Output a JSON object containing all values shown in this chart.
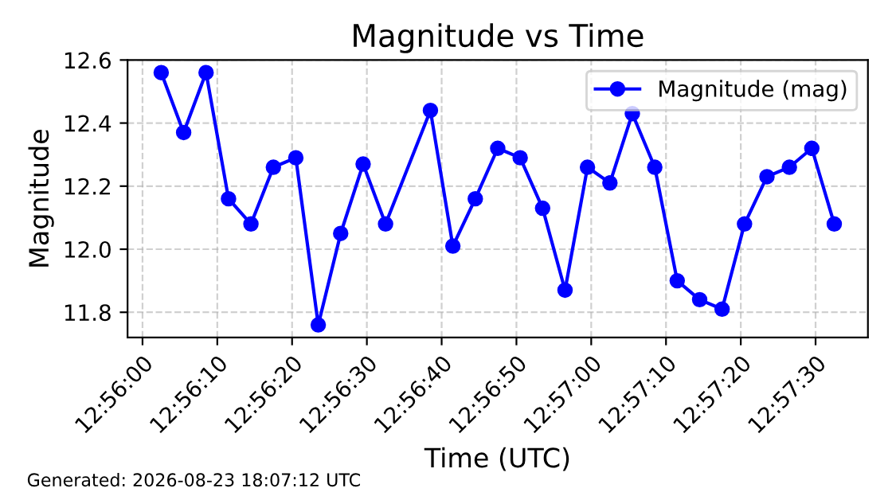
{
  "chart_data": {
    "type": "line",
    "title": "Magnitude vs Time",
    "xlabel": "Time (UTC)",
    "ylabel": "Magnitude",
    "annotations": [
      "Generated: 2026-08-23 18:07:12 UTC"
    ],
    "x": [
      "2026-08-23T12:56:02.5",
      "2026-08-23T12:56:05.5",
      "2026-08-23T12:56:08.5",
      "2026-08-23T12:56:11.5",
      "2026-08-23T12:56:14.5",
      "2026-08-23T12:56:17.5",
      "2026-08-23T12:56:20.5",
      "2026-08-23T12:56:23.5",
      "2026-08-23T12:56:26.5",
      "2026-08-23T12:56:29.5",
      "2026-08-23T12:56:32.5",
      "2026-08-23T12:56:38.5",
      "2026-08-23T12:56:41.5",
      "2026-08-23T12:56:44.5",
      "2026-08-23T12:56:47.5",
      "2026-08-23T12:56:50.5",
      "2026-08-23T12:56:53.5",
      "2026-08-23T12:56:56.5",
      "2026-08-23T12:56:59.5",
      "2026-08-23T12:57:02.5",
      "2026-08-23T12:57:05.5",
      "2026-08-23T12:57:08.5",
      "2026-08-23T12:57:11.5",
      "2026-08-23T12:57:14.5",
      "2026-08-23T12:57:17.5",
      "2026-08-23T12:57:20.5",
      "2026-08-23T12:57:23.5",
      "2026-08-23T12:57:26.5",
      "2026-08-23T12:57:29.5",
      "2026-08-23T12:57:32.5"
    ],
    "series": [
      {
        "name": "Magnitude (mag)",
        "color": "#0000ff",
        "values": [
          12.56,
          12.37,
          12.56,
          12.16,
          12.08,
          12.26,
          12.29,
          11.76,
          12.05,
          12.27,
          12.08,
          12.44,
          12.01,
          12.16,
          12.32,
          12.29,
          12.13,
          11.87,
          12.26,
          12.21,
          12.43,
          12.26,
          11.9,
          11.84,
          11.81,
          12.08,
          12.23,
          12.26,
          12.32,
          12.08
        ]
      }
    ],
    "xlim": [
      "2026-08-23T12:55:58",
      "2026-08-23T12:57:37"
    ],
    "xticks": [
      {
        "value": "2026-08-23T12:56:00",
        "label": "12:56:00"
      },
      {
        "value": "2026-08-23T12:56:10",
        "label": "12:56:10"
      },
      {
        "value": "2026-08-23T12:56:20",
        "label": "12:56:20"
      },
      {
        "value": "2026-08-23T12:56:30",
        "label": "12:56:30"
      },
      {
        "value": "2026-08-23T12:56:40",
        "label": "12:56:40"
      },
      {
        "value": "2026-08-23T12:56:50",
        "label": "12:56:50"
      },
      {
        "value": "2026-08-23T12:57:00",
        "label": "12:57:00"
      },
      {
        "value": "2026-08-23T12:57:10",
        "label": "12:57:10"
      },
      {
        "value": "2026-08-23T12:57:20",
        "label": "12:57:20"
      },
      {
        "value": "2026-08-23T12:57:30",
        "label": "12:57:30"
      }
    ],
    "ylim": [
      11.72,
      12.6
    ],
    "yticks": [
      {
        "value": 11.8,
        "label": "11.8"
      },
      {
        "value": 12.0,
        "label": "12.0"
      },
      {
        "value": 12.2,
        "label": "12.2"
      },
      {
        "value": 12.4,
        "label": "12.4"
      },
      {
        "value": 12.6,
        "label": "12.6"
      }
    ],
    "grid": true,
    "legend": "top right",
    "marker": "circle",
    "line_style": "solid"
  }
}
